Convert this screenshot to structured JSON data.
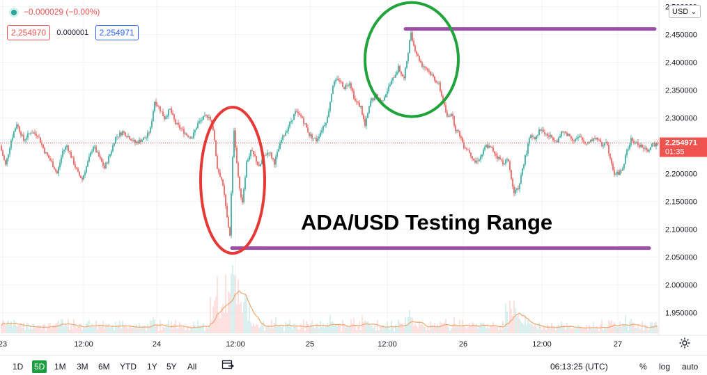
{
  "header": {
    "change_text": "−0.000029 (−0.00%)",
    "bid": "2.254970",
    "spread": "0.000001",
    "ask": "2.254971",
    "currency": "USD"
  },
  "chart_data": {
    "type": "candlestick",
    "title": "ADA/USD Testing Range",
    "ylim": [
      1.918,
      2.502
    ],
    "x_tick_labels": [
      "23",
      "12:00",
      "24",
      "12:00",
      "25",
      "12:00",
      "26",
      "12:00",
      "27"
    ],
    "y_tick_labels": [
      "2.500000",
      "2.450000",
      "2.400000",
      "2.350000",
      "2.300000",
      "2.250000",
      "2.200000",
      "2.150000",
      "2.100000",
      "2.050000",
      "2.000000",
      "1.950000"
    ],
    "y_ticks": [
      2.5,
      2.45,
      2.4,
      2.35,
      2.3,
      2.25,
      2.2,
      2.15,
      2.1,
      2.05,
      2.0,
      1.95
    ],
    "last_price": 2.254971,
    "last_price_label": "2.254971",
    "countdown": "01:35",
    "close_path": [
      [
        0,
        2.25
      ],
      [
        8,
        2.215
      ],
      [
        16,
        2.26
      ],
      [
        24,
        2.29
      ],
      [
        34,
        2.26
      ],
      [
        44,
        2.275
      ],
      [
        54,
        2.27
      ],
      [
        64,
        2.24
      ],
      [
        74,
        2.22
      ],
      [
        82,
        2.2
      ],
      [
        90,
        2.24
      ],
      [
        96,
        2.25
      ],
      [
        104,
        2.225
      ],
      [
        112,
        2.2
      ],
      [
        118,
        2.19
      ],
      [
        126,
        2.22
      ],
      [
        134,
        2.25
      ],
      [
        142,
        2.23
      ],
      [
        150,
        2.21
      ],
      [
        158,
        2.235
      ],
      [
        166,
        2.265
      ],
      [
        176,
        2.275
      ],
      [
        186,
        2.265
      ],
      [
        194,
        2.255
      ],
      [
        202,
        2.26
      ],
      [
        210,
        2.265
      ],
      [
        216,
        2.28
      ],
      [
        222,
        2.33
      ],
      [
        228,
        2.32
      ],
      [
        236,
        2.3
      ],
      [
        244,
        2.315
      ],
      [
        252,
        2.29
      ],
      [
        260,
        2.28
      ],
      [
        268,
        2.27
      ],
      [
        276,
        2.265
      ],
      [
        284,
        2.29
      ],
      [
        292,
        2.3
      ],
      [
        300,
        2.305
      ],
      [
        306,
        2.28
      ],
      [
        312,
        2.21
      ],
      [
        318,
        2.19
      ],
      [
        322,
        2.16
      ],
      [
        326,
        2.12
      ],
      [
        330,
        2.09
      ],
      [
        333,
        2.2
      ],
      [
        336,
        2.28
      ],
      [
        340,
        2.22
      ],
      [
        344,
        2.17
      ],
      [
        348,
        2.15
      ],
      [
        354,
        2.22
      ],
      [
        360,
        2.24
      ],
      [
        366,
        2.23
      ],
      [
        372,
        2.21
      ],
      [
        378,
        2.23
      ],
      [
        386,
        2.24
      ],
      [
        394,
        2.22
      ],
      [
        404,
        2.26
      ],
      [
        414,
        2.285
      ],
      [
        424,
        2.31
      ],
      [
        434,
        2.3
      ],
      [
        444,
        2.27
      ],
      [
        454,
        2.26
      ],
      [
        462,
        2.28
      ],
      [
        470,
        2.3
      ],
      [
        478,
        2.36
      ],
      [
        486,
        2.37
      ],
      [
        494,
        2.355
      ],
      [
        502,
        2.365
      ],
      [
        510,
        2.33
      ],
      [
        518,
        2.32
      ],
      [
        524,
        2.285
      ],
      [
        532,
        2.33
      ],
      [
        540,
        2.34
      ],
      [
        548,
        2.33
      ],
      [
        556,
        2.35
      ],
      [
        564,
        2.37
      ],
      [
        572,
        2.39
      ],
      [
        580,
        2.37
      ],
      [
        586,
        2.42
      ],
      [
        590,
        2.455
      ],
      [
        594,
        2.43
      ],
      [
        600,
        2.41
      ],
      [
        606,
        2.395
      ],
      [
        612,
        2.39
      ],
      [
        618,
        2.38
      ],
      [
        624,
        2.37
      ],
      [
        630,
        2.36
      ],
      [
        636,
        2.33
      ],
      [
        642,
        2.3
      ],
      [
        648,
        2.31
      ],
      [
        654,
        2.28
      ],
      [
        660,
        2.27
      ],
      [
        666,
        2.25
      ],
      [
        674,
        2.24
      ],
      [
        682,
        2.22
      ],
      [
        690,
        2.23
      ],
      [
        698,
        2.25
      ],
      [
        706,
        2.245
      ],
      [
        714,
        2.23
      ],
      [
        722,
        2.22
      ],
      [
        730,
        2.225
      ],
      [
        734,
        2.19
      ],
      [
        738,
        2.165
      ],
      [
        742,
        2.17
      ],
      [
        746,
        2.18
      ],
      [
        750,
        2.21
      ],
      [
        756,
        2.24
      ],
      [
        762,
        2.27
      ],
      [
        768,
        2.265
      ],
      [
        776,
        2.28
      ],
      [
        784,
        2.27
      ],
      [
        792,
        2.265
      ],
      [
        800,
        2.26
      ],
      [
        808,
        2.275
      ],
      [
        816,
        2.27
      ],
      [
        824,
        2.26
      ],
      [
        832,
        2.265
      ],
      [
        840,
        2.255
      ],
      [
        848,
        2.26
      ],
      [
        856,
        2.265
      ],
      [
        864,
        2.25
      ],
      [
        870,
        2.26
      ],
      [
        876,
        2.23
      ],
      [
        882,
        2.2
      ],
      [
        888,
        2.2
      ],
      [
        894,
        2.21
      ],
      [
        900,
        2.24
      ],
      [
        906,
        2.26
      ],
      [
        912,
        2.255
      ],
      [
        920,
        2.25
      ],
      [
        928,
        2.24
      ],
      [
        936,
        2.25
      ],
      [
        944,
        2.255
      ]
    ],
    "annotations": {
      "resistance_level": 2.46,
      "support_level": 2.066,
      "red_ellipse_center": [
        2.188,
        0.195
      ],
      "green_ellipse_center": [
        2.405,
        0.12
      ]
    },
    "colors": {
      "up": "#26a69a",
      "down": "#ef5350",
      "level_line": "#9c4fa4",
      "ellipse_red": "#e53935",
      "ellipse_green": "#1fa33a",
      "volume_ma": "#f0a66b"
    }
  },
  "toolbar": {
    "ranges": [
      "1D",
      "5D",
      "1M",
      "3M",
      "6M",
      "YTD",
      "1Y",
      "5Y",
      "All"
    ],
    "active_range": "5D",
    "clock": "06:13:25 (UTC)",
    "percent": "%",
    "log": "log",
    "auto": "auto"
  }
}
